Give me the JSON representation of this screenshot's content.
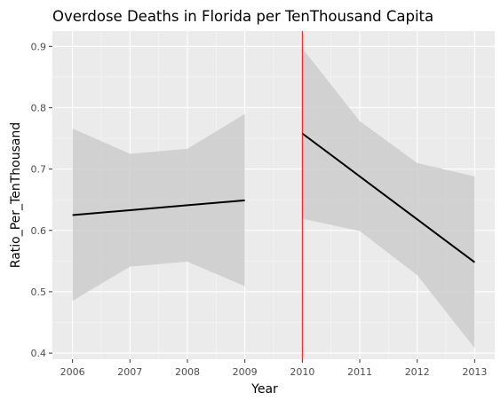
{
  "chart_data": {
    "type": "line",
    "title": "Overdose Deaths in Florida per TenThousand Capita",
    "xlabel": "Year",
    "ylabel": "Ratio_Per_TenThousand",
    "x_ticks": [
      "2006",
      "2007",
      "2008",
      "2009",
      "2010",
      "2011",
      "2012",
      "2013"
    ],
    "y_ticks": [
      "0.4",
      "0.5",
      "0.6",
      "0.7",
      "0.8",
      "0.9"
    ],
    "xlim": [
      2005.65,
      2013.35
    ],
    "ylim": [
      0.39,
      0.925
    ],
    "grid": true,
    "legend": "none",
    "vline": {
      "x": 2010,
      "color": "#ff0000"
    },
    "series": [
      {
        "x": [
          2006,
          2007,
          2008,
          2009
        ],
        "y": [
          0.625,
          0.633,
          0.641,
          0.649
        ],
        "lower": [
          0.485,
          0.541,
          0.549,
          0.509
        ],
        "upper": [
          0.766,
          0.725,
          0.733,
          0.79
        ]
      },
      {
        "x": [
          2010,
          2011,
          2012,
          2013
        ],
        "y": [
          0.758,
          0.688,
          0.618,
          0.548
        ],
        "lower": [
          0.619,
          0.599,
          0.527,
          0.408
        ],
        "upper": [
          0.897,
          0.778,
          0.71,
          0.688
        ]
      }
    ],
    "colors": {
      "panel": "#ebebeb",
      "grid_major": "#ffffff",
      "band": "#cccccc",
      "line": "#000000"
    }
  }
}
